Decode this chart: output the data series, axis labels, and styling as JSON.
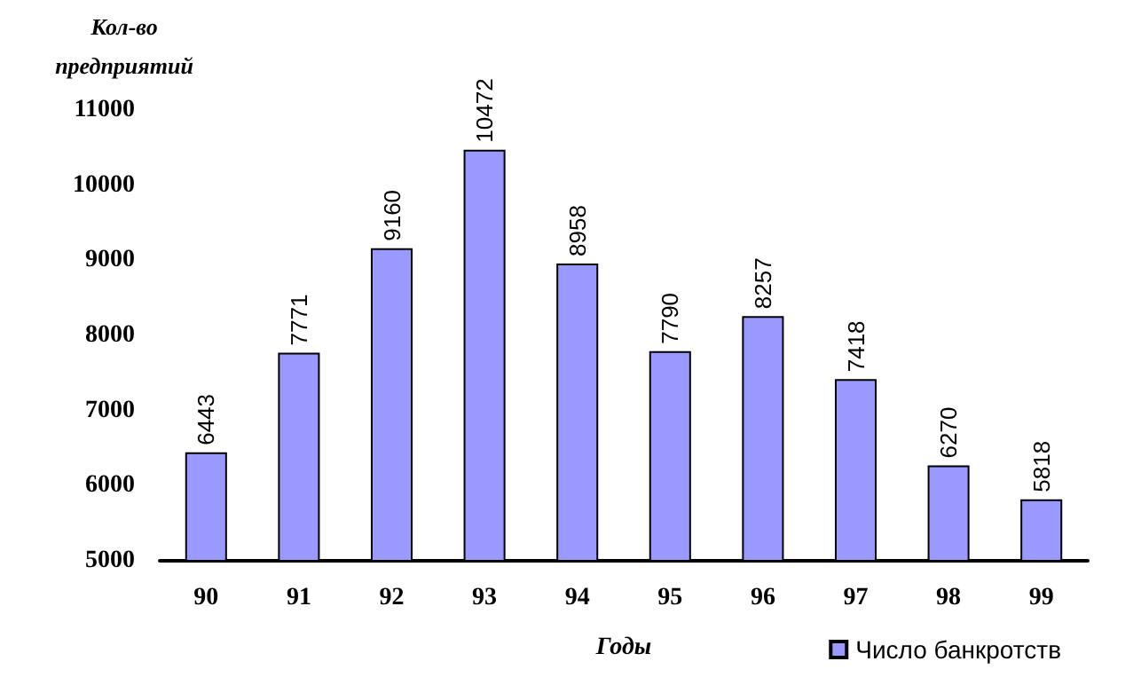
{
  "chart_data": {
    "type": "bar",
    "xlabel": "Годы",
    "ylabel": "Кол-во\nпредприятий",
    "categories": [
      "90",
      "91",
      "92",
      "93",
      "94",
      "95",
      "96",
      "97",
      "98",
      "99"
    ],
    "series": [
      {
        "name": "Число банкротств",
        "color": "#9999ff",
        "values": [
          6443,
          7771,
          9160,
          10472,
          8958,
          7790,
          8257,
          7418,
          6270,
          5818
        ]
      }
    ],
    "ylim": [
      5000,
      11000
    ],
    "yticks": [
      5000,
      6000,
      7000,
      8000,
      9000,
      10000,
      11000
    ],
    "data_labels": true,
    "grid": false,
    "legend": "bottom right"
  }
}
